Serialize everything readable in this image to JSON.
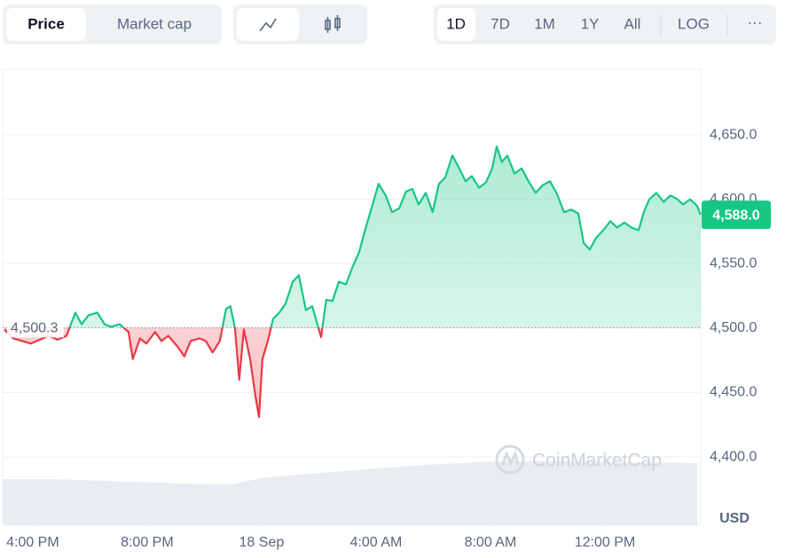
{
  "toolbar": {
    "view": [
      "Price",
      "Market cap"
    ],
    "ranges": [
      "1D",
      "7D",
      "1M",
      "1Y",
      "All"
    ],
    "scale": "LOG",
    "more": "···"
  },
  "chart_data": {
    "type": "line",
    "watermark": "CoinMarketCap",
    "y_unit": "USD",
    "baseline": {
      "value": 4500.3,
      "label": "4,500.3"
    },
    "current_price": {
      "value": 4588.0,
      "label": "4,588.0"
    },
    "colors": {
      "up": "#16c784",
      "down": "#ea3943"
    },
    "x": [
      -0.99,
      -0.68,
      -0.37,
      -0.06,
      0.25,
      0.56,
      0.87,
      1.18,
      1.49,
      1.71,
      1.95,
      2.26,
      2.51,
      2.73,
      3.04,
      3.35,
      3.5,
      3.75,
      3.97,
      4.28,
      4.5,
      4.74,
      5.05,
      5.3,
      5.52,
      5.83,
      6.05,
      6.29,
      6.54,
      6.76,
      6.91,
      7.07,
      7.22,
      7.38,
      7.6,
      7.78,
      7.91,
      8.03,
      8.22,
      8.4,
      8.62,
      8.84,
      9.09,
      9.3,
      9.55,
      9.77,
      9.95,
      10.08,
      10.26,
      10.48,
      10.7,
      10.95,
      11.19,
      11.41,
      11.63,
      11.88,
      12.09,
      12.34,
      12.56,
      12.81,
      13.05,
      13.27,
      13.49,
      13.74,
      13.98,
      14.2,
      14.42,
      14.67,
      14.91,
      15.13,
      15.35,
      15.6,
      15.84,
      16.06,
      16.22,
      16.4,
      16.59,
      16.84,
      17.09,
      17.33,
      17.58,
      17.83,
      18.08,
      18.33,
      18.57,
      18.82,
      19.07,
      19.26,
      19.47,
      19.69,
      19.94,
      20.19,
      20.43,
      20.68,
      20.93,
      21.18,
      21.36,
      21.55,
      21.8,
      22.05,
      22.29,
      22.54,
      22.73,
      22.98,
      23.22,
      23.35
    ],
    "series": [
      {
        "name": "Price",
        "values": [
          4499,
          4492,
          4490,
          4488,
          4491,
          4494,
          4491,
          4494,
          4512,
          4503,
          4510,
          4512,
          4503,
          4501,
          4503,
          4497,
          4476,
          4492,
          4488,
          4497,
          4490,
          4494,
          4486,
          4478,
          4490,
          4492,
          4490,
          4481,
          4490,
          4515,
          4517,
          4500,
          4460,
          4499,
          4476,
          4448,
          4431,
          4476,
          4490,
          4507,
          4512,
          4519,
          4536,
          4541,
          4514,
          4517,
          4503,
          4493,
          4522,
          4521,
          4536,
          4534,
          4548,
          4559,
          4577,
          4596,
          4612,
          4603,
          4590,
          4593,
          4606,
          4608,
          4596,
          4605,
          4590,
          4612,
          4617,
          4634,
          4624,
          4614,
          4618,
          4609,
          4613,
          4624,
          4641,
          4629,
          4634,
          4620,
          4624,
          4614,
          4605,
          4611,
          4614,
          4604,
          4590,
          4592,
          4589,
          4566,
          4561,
          4570,
          4576,
          4583,
          4578,
          4582,
          4578,
          4576,
          4590,
          4600,
          4605,
          4598,
          4603,
          4600,
          4596,
          4600,
          4595,
          4588
        ]
      }
    ],
    "xlim": [
      -1.05,
      23.35
    ],
    "xticks": [
      {
        "value": 0,
        "label": "4:00 PM"
      },
      {
        "value": 4,
        "label": "8:00 PM"
      },
      {
        "value": 8,
        "label": "18 Sep"
      },
      {
        "value": 12,
        "label": "4:00 AM"
      },
      {
        "value": 16,
        "label": "8:00 AM"
      },
      {
        "value": 20,
        "label": "12:00 PM"
      }
    ],
    "ylim": [
      4347,
      4701
    ],
    "yticks": [
      {
        "value": 4400,
        "label": "4,400.0"
      },
      {
        "value": 4450,
        "label": "4,450.0"
      },
      {
        "value": 4500,
        "label": "4,500.0"
      },
      {
        "value": 4550,
        "label": "4,550.0"
      },
      {
        "value": 4600,
        "label": "4,600.0"
      },
      {
        "value": 4650,
        "label": "4,650.0"
      }
    ],
    "grid": true
  }
}
